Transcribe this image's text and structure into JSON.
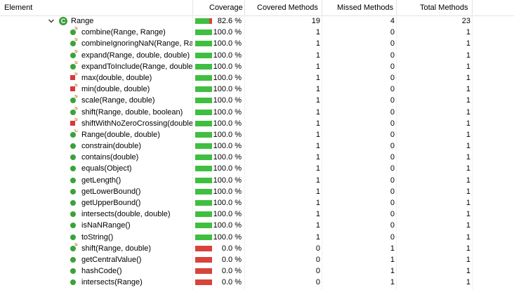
{
  "headers": {
    "element": "Element",
    "coverage": "Coverage",
    "covered": "Covered Methods",
    "missed": "Missed Methods",
    "total": "Total Methods"
  },
  "class_row": {
    "name": "Range",
    "coverage_text": "82.6 %",
    "coverage_fraction": 0.826,
    "covered": "19",
    "missed": "4",
    "total": "23"
  },
  "rows": [
    {
      "name": "combine(Range, Range)",
      "icon": "static-public-method-icon",
      "cov": "100.0 %",
      "f": 1,
      "c": "1",
      "m": "0",
      "t": "1"
    },
    {
      "name": "combineIgnoringNaN(Range, Rar",
      "icon": "static-public-method-icon",
      "cov": "100.0 %",
      "f": 1,
      "c": "1",
      "m": "0",
      "t": "1"
    },
    {
      "name": "expand(Range, double, double)",
      "icon": "static-public-method-icon",
      "cov": "100.0 %",
      "f": 1,
      "c": "1",
      "m": "0",
      "t": "1"
    },
    {
      "name": "expandToInclude(Range, double)",
      "icon": "static-public-method-icon",
      "cov": "100.0 %",
      "f": 1,
      "c": "1",
      "m": "0",
      "t": "1"
    },
    {
      "name": "max(double, double)",
      "icon": "static-private-method-icon",
      "cov": "100.0 %",
      "f": 1,
      "c": "1",
      "m": "0",
      "t": "1"
    },
    {
      "name": "min(double, double)",
      "icon": "static-private-method-icon",
      "cov": "100.0 %",
      "f": 1,
      "c": "1",
      "m": "0",
      "t": "1"
    },
    {
      "name": "scale(Range, double)",
      "icon": "static-public-method-icon",
      "cov": "100.0 %",
      "f": 1,
      "c": "1",
      "m": "0",
      "t": "1"
    },
    {
      "name": "shift(Range, double, boolean)",
      "icon": "static-public-method-icon",
      "cov": "100.0 %",
      "f": 1,
      "c": "1",
      "m": "0",
      "t": "1"
    },
    {
      "name": "shiftWithNoZeroCrossing(double,",
      "icon": "static-private-method-icon",
      "cov": "100.0 %",
      "f": 1,
      "c": "1",
      "m": "0",
      "t": "1"
    },
    {
      "name": "Range(double, double)",
      "icon": "constructor-icon",
      "cov": "100.0 %",
      "f": 1,
      "c": "1",
      "m": "0",
      "t": "1"
    },
    {
      "name": "constrain(double)",
      "icon": "public-method-icon",
      "cov": "100.0 %",
      "f": 1,
      "c": "1",
      "m": "0",
      "t": "1"
    },
    {
      "name": "contains(double)",
      "icon": "public-method-icon",
      "cov": "100.0 %",
      "f": 1,
      "c": "1",
      "m": "0",
      "t": "1"
    },
    {
      "name": "equals(Object)",
      "icon": "public-method-icon",
      "cov": "100.0 %",
      "f": 1,
      "c": "1",
      "m": "0",
      "t": "1"
    },
    {
      "name": "getLength()",
      "icon": "public-method-icon",
      "cov": "100.0 %",
      "f": 1,
      "c": "1",
      "m": "0",
      "t": "1"
    },
    {
      "name": "getLowerBound()",
      "icon": "public-method-icon",
      "cov": "100.0 %",
      "f": 1,
      "c": "1",
      "m": "0",
      "t": "1"
    },
    {
      "name": "getUpperBound()",
      "icon": "public-method-icon",
      "cov": "100.0 %",
      "f": 1,
      "c": "1",
      "m": "0",
      "t": "1"
    },
    {
      "name": "intersects(double, double)",
      "icon": "public-method-icon",
      "cov": "100.0 %",
      "f": 1,
      "c": "1",
      "m": "0",
      "t": "1"
    },
    {
      "name": "isNaNRange()",
      "icon": "public-method-icon",
      "cov": "100.0 %",
      "f": 1,
      "c": "1",
      "m": "0",
      "t": "1"
    },
    {
      "name": "toString()",
      "icon": "public-method-icon",
      "cov": "100.0 %",
      "f": 1,
      "c": "1",
      "m": "0",
      "t": "1"
    },
    {
      "name": "shift(Range, double)",
      "icon": "static-public-method-icon",
      "cov": "0.0 %",
      "f": 0,
      "c": "0",
      "m": "1",
      "t": "1"
    },
    {
      "name": "getCentralValue()",
      "icon": "public-method-icon",
      "cov": "0.0 %",
      "f": 0,
      "c": "0",
      "m": "1",
      "t": "1"
    },
    {
      "name": "hashCode()",
      "icon": "public-method-icon",
      "cov": "0.0 %",
      "f": 0,
      "c": "0",
      "m": "1",
      "t": "1"
    },
    {
      "name": "intersects(Range)",
      "icon": "public-method-icon",
      "cov": "0.0 %",
      "f": 0,
      "c": "0",
      "m": "1",
      "t": "1"
    }
  ],
  "colors": {
    "covered": "#3fbf3f",
    "missed": "#d8433b",
    "public_method": "#3aa23a",
    "private_method": "#d6393a",
    "static_marker": "#c07a28"
  }
}
